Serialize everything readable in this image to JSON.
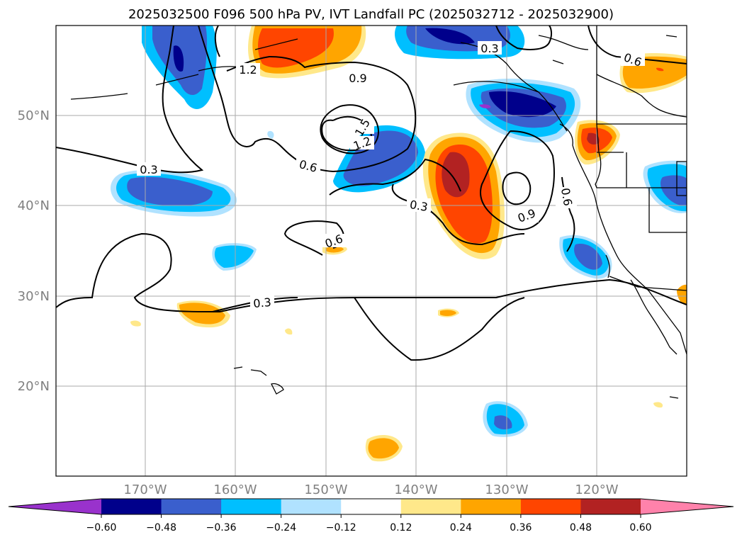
{
  "title": "2025032500 F096 500 hPa PV, IVT Landfall PC (2025032712 - 2025032900)",
  "lat_labels": [
    {
      "text": "50°N",
      "lat": 50
    },
    {
      "text": "40°N",
      "lat": 40
    },
    {
      "text": "30°N",
      "lat": 30
    },
    {
      "text": "20°N",
      "lat": 20
    }
  ],
  "lon_labels": [
    {
      "text": "170°W",
      "lon": -170
    },
    {
      "text": "160°W",
      "lon": -160
    },
    {
      "text": "150°W",
      "lon": -150
    },
    {
      "text": "140°W",
      "lon": -140
    },
    {
      "text": "130°W",
      "lon": -130
    },
    {
      "text": "120°W",
      "lon": -120
    }
  ],
  "contour_labels": [
    "1.2",
    "0.9",
    "1.5",
    "1.2",
    "0.6",
    "0.3",
    "0.3",
    "0.6",
    "0.9",
    "0.6",
    "0.3",
    "0.6",
    "0.3"
  ],
  "colorbar": {
    "ticks": [
      "−0.60",
      "−0.48",
      "−0.36",
      "−0.24",
      "−0.12",
      "0.12",
      "0.24",
      "0.36",
      "0.48",
      "0.60"
    ],
    "colors": [
      "#9932cc",
      "#00008b",
      "#3a5fcd",
      "#00bfff",
      "#b0e2ff",
      "#ffffff",
      "#ffe88a",
      "#ffa500",
      "#ff4500",
      "#b22222",
      "#ff82ab"
    ]
  }
}
